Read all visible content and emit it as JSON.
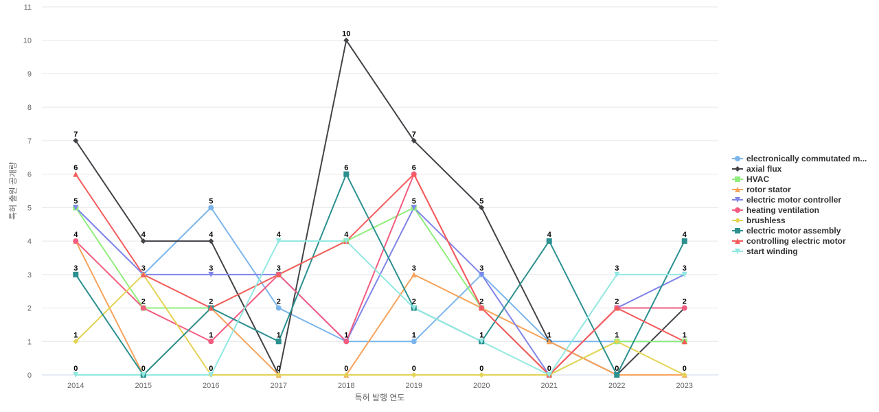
{
  "chart_data": {
    "type": "line",
    "xlabel": "특허 발행 연도",
    "ylabel": "특허 출원 공개량",
    "x": [
      "2014",
      "2015",
      "2016",
      "2017",
      "2018",
      "2019",
      "2020",
      "2021",
      "2022",
      "2023"
    ],
    "ylim": [
      0,
      11
    ],
    "yticks": [
      0,
      1,
      2,
      3,
      4,
      5,
      6,
      7,
      8,
      9,
      10,
      11
    ],
    "grid": true,
    "legend_position": "right",
    "data_labels": true,
    "series": [
      {
        "name": "electronically commutated m...",
        "color": "#7cb5ec",
        "marker": "circle",
        "values": [
          5,
          3,
          5,
          2,
          1,
          1,
          3,
          1,
          1,
          1
        ]
      },
      {
        "name": "axial flux",
        "color": "#434348",
        "marker": "diamond",
        "values": [
          7,
          4,
          4,
          0,
          10,
          7,
          5,
          1,
          0,
          2
        ]
      },
      {
        "name": "HVAC",
        "color": "#90ed7d",
        "marker": "square",
        "values": [
          5,
          2,
          2,
          3,
          4,
          5,
          2,
          0,
          1,
          1
        ]
      },
      {
        "name": "rotor stator",
        "color": "#f7a35c",
        "marker": "triangle",
        "values": [
          4,
          0,
          2,
          0,
          0,
          3,
          2,
          1,
          0,
          0
        ]
      },
      {
        "name": "electric motor controller",
        "color": "#8085e9",
        "marker": "triangle-down",
        "values": [
          5,
          3,
          3,
          3,
          1,
          5,
          3,
          0,
          2,
          3
        ]
      },
      {
        "name": "heating ventilation",
        "color": "#f15c80",
        "marker": "circle",
        "values": [
          4,
          2,
          1,
          3,
          1,
          6,
          2,
          0,
          2,
          2
        ]
      },
      {
        "name": "brushless",
        "color": "#e4d354",
        "marker": "diamond",
        "values": [
          1,
          3,
          0,
          0,
          0,
          0,
          0,
          0,
          1,
          0
        ]
      },
      {
        "name": "electric motor assembly",
        "color": "#2b908f",
        "marker": "square",
        "values": [
          3,
          0,
          2,
          1,
          6,
          2,
          1,
          4,
          0,
          4
        ]
      },
      {
        "name": "controlling electric motor",
        "color": "#f45b5b",
        "marker": "triangle",
        "values": [
          6,
          3,
          2,
          3,
          4,
          6,
          2,
          0,
          2,
          1
        ]
      },
      {
        "name": "start winding",
        "color": "#91e8e1",
        "marker": "triangle-down",
        "values": [
          0,
          0,
          0,
          4,
          4,
          2,
          1,
          0,
          3,
          3
        ]
      }
    ],
    "data_label_values": [
      {
        "x": "2014",
        "labels": [
          7,
          6,
          5,
          4,
          3,
          1,
          0
        ]
      },
      {
        "x": "2015",
        "labels": [
          4,
          3,
          2,
          0
        ]
      },
      {
        "x": "2016",
        "labels": [
          5,
          4,
          3,
          2,
          1,
          0
        ]
      },
      {
        "x": "2017",
        "labels": [
          4,
          3,
          2,
          1,
          0
        ]
      },
      {
        "x": "2018",
        "labels": [
          10,
          6,
          4,
          1,
          0
        ]
      },
      {
        "x": "2019",
        "labels": [
          7,
          6,
          5,
          3,
          2,
          1,
          0
        ]
      },
      {
        "x": "2020",
        "labels": [
          5,
          3,
          2,
          1,
          0
        ]
      },
      {
        "x": "2021",
        "labels": [
          4,
          1,
          0
        ]
      },
      {
        "x": "2022",
        "labels": [
          3,
          2,
          1,
          0
        ]
      },
      {
        "x": "2023",
        "labels": [
          4,
          3,
          2,
          1,
          0
        ]
      }
    ]
  }
}
